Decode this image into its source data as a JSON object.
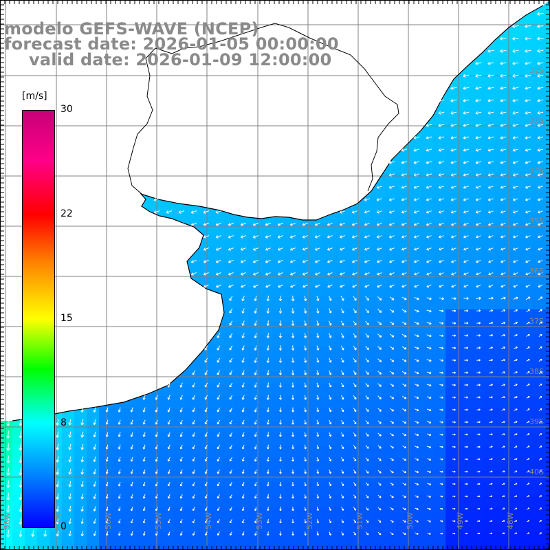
{
  "title": {
    "model": "modelo GEFS-WAVE (NCEP)",
    "forecast": "forecast date: 2026-01-05 00:00:00",
    "valid": "valid date: 2026-01-09 12:00:00"
  },
  "colorbar": {
    "unit": "[m/s]",
    "min": 0,
    "max": 30,
    "tick_labels": [
      "30",
      "22",
      "15",
      "8",
      "0"
    ],
    "colors": [
      "#0000ff",
      "#0088ff",
      "#00ffff",
      "#00ff00",
      "#ffff00",
      "#ff8800",
      "#ff0000",
      "#ff0088",
      "#c80078"
    ]
  },
  "map": {
    "lat_labels": [
      "32S",
      "33S",
      "34S",
      "35S",
      "36S",
      "37S",
      "38S",
      "39S",
      "40S"
    ],
    "lon_labels": [
      "58W",
      "57W",
      "56W",
      "55W",
      "54W",
      "53W",
      "52W",
      "51W",
      "50W",
      "49W",
      "48W"
    ],
    "land_color": "#ffffff",
    "grid_color": "#808080"
  }
}
